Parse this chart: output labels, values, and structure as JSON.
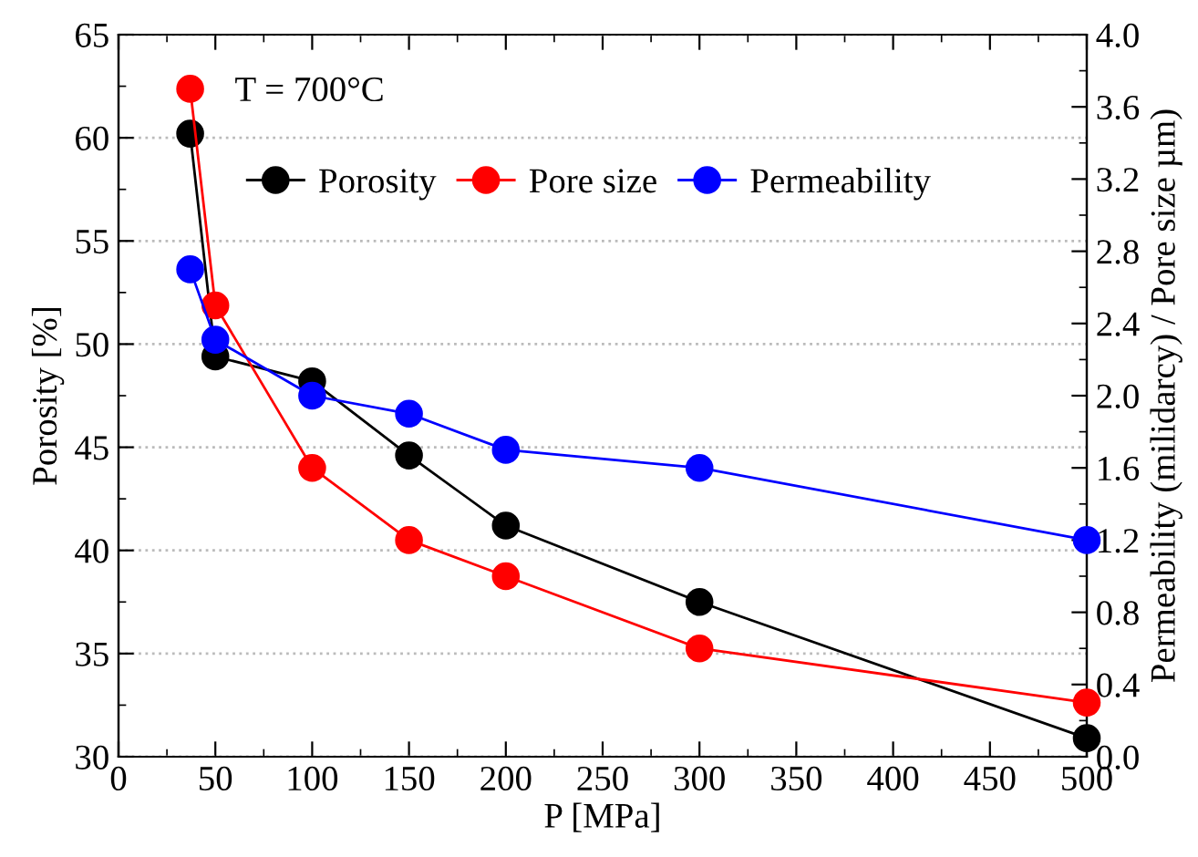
{
  "chart_data": {
    "type": "line",
    "xlabel": "P [MPa]",
    "ylabel": "Porosity [%]",
    "y2label": "Permeability (milidarcy) / Pore size µm)",
    "annotations": [
      "T = 700°C"
    ],
    "x": [
      37,
      50,
      100,
      150,
      200,
      300,
      500
    ],
    "series": [
      {
        "name": "Porosity",
        "color": "#000000",
        "values": [
          60.2,
          49.4,
          48.2,
          44.6,
          41.2,
          37.5,
          30.9
        ]
      },
      {
        "name": "Pore size",
        "color": "#ff0000",
        "axis": "y2",
        "values": [
          3.7,
          2.5,
          1.6,
          1.2,
          1.0,
          0.6,
          0.3
        ]
      },
      {
        "name": "Permeability",
        "color": "#0000ff",
        "axis": "y2",
        "values": [
          2.7,
          2.31,
          2.0,
          1.9,
          1.7,
          1.6,
          1.2
        ]
      }
    ],
    "xlim": [
      0,
      500
    ],
    "xticks": [
      0,
      50,
      100,
      150,
      200,
      250,
      300,
      350,
      400,
      450,
      500
    ],
    "ylim": [
      30,
      65
    ],
    "yticks": [
      30,
      35,
      40,
      45,
      50,
      55,
      60,
      65
    ],
    "y2lim": [
      0,
      4
    ],
    "y2ticks": [
      {
        "value": 0,
        "label": "0.0"
      },
      0.4,
      0.8,
      1.2,
      1.6,
      {
        "value": 2,
        "label": "2.0"
      },
      2.4,
      2.8,
      3.2,
      3.6,
      {
        "value": 4,
        "label": "4.0"
      }
    ],
    "grid": "y",
    "legend": "top left",
    "marker": "circle",
    "line_style": "solid"
  }
}
